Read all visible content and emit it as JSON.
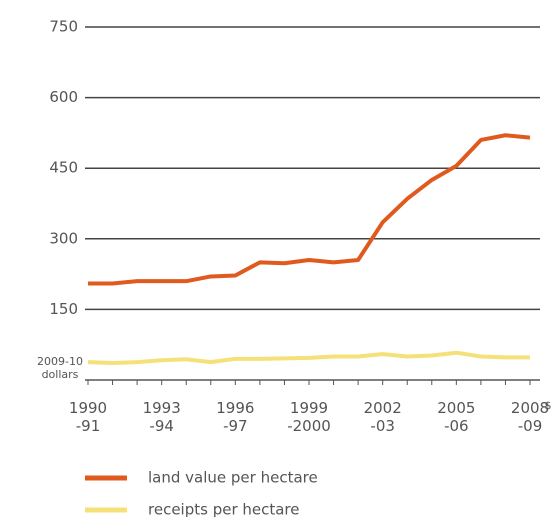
{
  "chart_data": {
    "type": "line",
    "categories": [
      "1990\n-91",
      null,
      null,
      "1993\n-94",
      null,
      null,
      "1996\n-97",
      null,
      null,
      "1999\n-2000",
      null,
      null,
      "2002\n-03",
      null,
      null,
      "2005\n-06",
      null,
      null,
      "2008\n-09"
    ],
    "series": [
      {
        "name": "land value per hectare",
        "color": "#e05a1e",
        "values": [
          205,
          205,
          210,
          210,
          210,
          220,
          222,
          250,
          248,
          255,
          250,
          255,
          335,
          385,
          425,
          455,
          510,
          520,
          515
        ]
      },
      {
        "name": "receipts per hectare",
        "color": "#f5e07a",
        "values": [
          38,
          36,
          38,
          42,
          44,
          38,
          45,
          45,
          46,
          47,
          50,
          50,
          55,
          50,
          52,
          58,
          50,
          48,
          48
        ]
      }
    ],
    "ylim": [
      0,
      750
    ],
    "yticks": [
      150,
      300,
      450,
      600,
      750
    ],
    "grid": true,
    "y_unit_label": "2009-10 dollars",
    "x_unit_label": "$"
  }
}
